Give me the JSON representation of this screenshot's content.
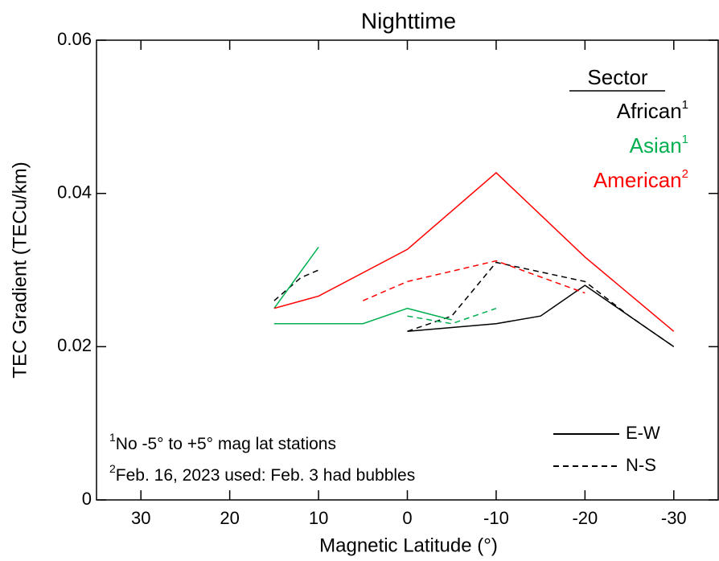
{
  "chart_data": {
    "type": "line",
    "title": "Nighttime",
    "x_label": "Magnetic Latitude (°)",
    "y_label": "TEC Gradient (TECu/km)",
    "xlim": [
      35,
      -35
    ],
    "ylim": [
      0,
      0.06
    ],
    "xticks": [
      30,
      20,
      10,
      0,
      -10,
      -20,
      -30
    ],
    "yticks": [
      0,
      0.02,
      0.04,
      0.06
    ],
    "legend_title": "Sector",
    "line_styles": [
      {
        "label": "E-W",
        "dash": "none"
      },
      {
        "label": "N-S",
        "dash": "7 5"
      }
    ],
    "series": [
      {
        "name": "African",
        "note": "1",
        "color": "#000000",
        "lines": [
          {
            "x": [
              0,
              -5,
              -10,
              -15,
              -20,
              -25,
              -30
            ],
            "values": [
              0.022,
              0.0225,
              0.023,
              0.024,
              0.028,
              0.024,
              0.02
            ]
          },
          {
            "x": [
              15,
              12,
              10
            ],
            "values": [
              0.026,
              0.029,
              0.03
            ]
          },
          {
            "x": [
              0,
              -5,
              -10,
              -20,
              -25,
              -30
            ],
            "values": [
              0.022,
              0.024,
              0.031,
              0.0285,
              0.024,
              0.02
            ]
          }
        ]
      },
      {
        "name": "Asian",
        "note": "1",
        "color": "#00b050",
        "lines": [
          {
            "x": [
              15,
              10
            ],
            "values": [
              0.025,
              0.033
            ]
          },
          {
            "x": [
              15,
              10,
              5,
              0,
              -5
            ],
            "values": [
              0.023,
              0.023,
              0.023,
              0.025,
              0.0235
            ]
          },
          {
            "x": [
              0,
              -5,
              -10
            ],
            "values": [
              0.024,
              0.023,
              0.025
            ]
          }
        ]
      },
      {
        "name": "American",
        "note": "2",
        "color": "#ff0000",
        "lines": [
          {
            "x": [
              15,
              10,
              0,
              -10,
              -20,
              -30
            ],
            "values": [
              0.025,
              0.0266,
              0.0327,
              0.0427,
              0.0317,
              0.022
            ]
          },
          {
            "x": [
              5,
              0,
              -10,
              -20
            ],
            "values": [
              0.026,
              0.0285,
              0.0312,
              0.027
            ]
          }
        ]
      }
    ],
    "series_line_style": [
      [
        0,
        1,
        1
      ],
      [
        0,
        0,
        1
      ],
      [
        0,
        1
      ]
    ],
    "footnotes": [
      {
        "mark": "1",
        "text": "No -5° to +5° mag lat stations"
      },
      {
        "mark": "2",
        "text": "Feb. 16, 2023 used: Feb. 3 had bubbles"
      }
    ]
  }
}
